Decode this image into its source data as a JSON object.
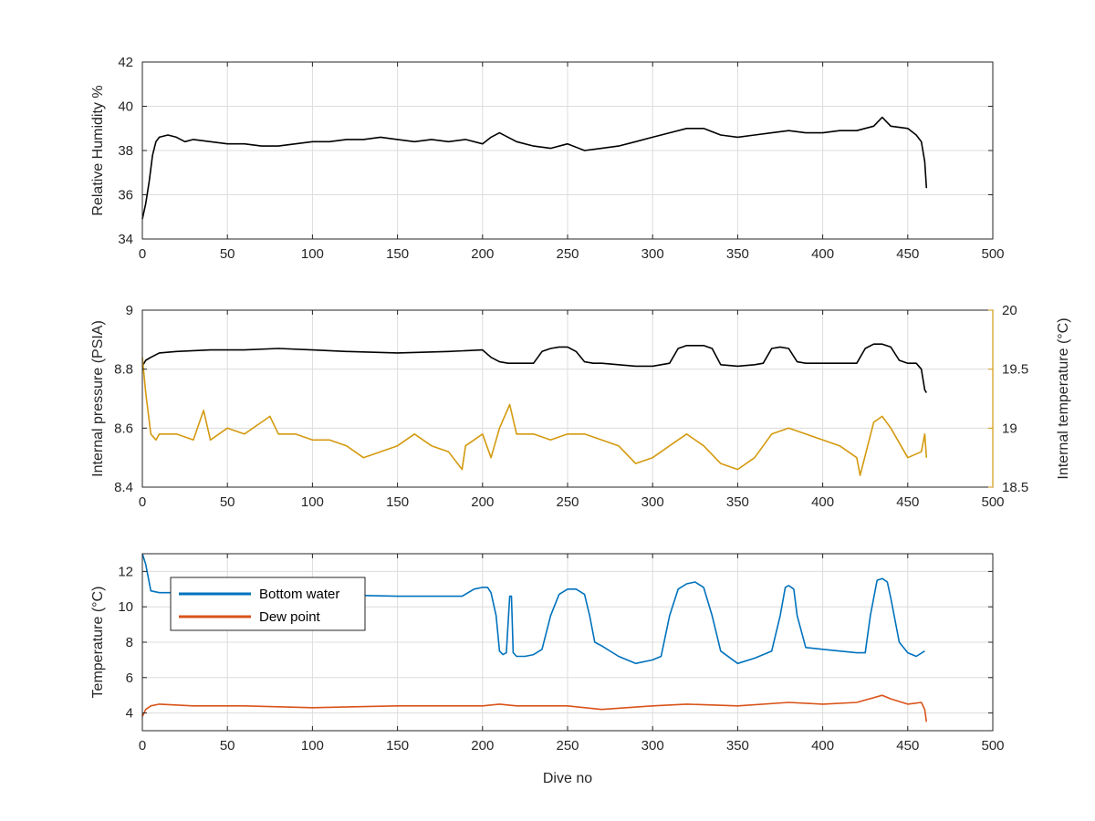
{
  "chart_data": [
    {
      "type": "line",
      "xlabel": "",
      "ylabel": "Relative Humidity %",
      "xlim": [
        0,
        500
      ],
      "ylim": [
        34,
        42
      ],
      "xticks": [
        0,
        50,
        100,
        150,
        200,
        250,
        300,
        350,
        400,
        450,
        500
      ],
      "yticks": [
        34,
        36,
        38,
        40,
        42
      ],
      "grid": true,
      "series": [
        {
          "color": "#000000",
          "x": [
            0,
            2,
            4,
            6,
            8,
            10,
            15,
            20,
            25,
            30,
            40,
            50,
            60,
            70,
            80,
            90,
            100,
            110,
            120,
            130,
            140,
            150,
            160,
            170,
            180,
            190,
            200,
            205,
            210,
            220,
            230,
            240,
            250,
            260,
            270,
            280,
            290,
            300,
            310,
            320,
            330,
            340,
            350,
            360,
            370,
            380,
            390,
            400,
            410,
            420,
            430,
            435,
            440,
            450,
            455,
            458,
            460,
            461
          ],
          "y": [
            34.9,
            35.6,
            36.6,
            37.8,
            38.4,
            38.6,
            38.7,
            38.6,
            38.4,
            38.5,
            38.4,
            38.3,
            38.3,
            38.2,
            38.2,
            38.3,
            38.4,
            38.4,
            38.5,
            38.5,
            38.6,
            38.5,
            38.4,
            38.5,
            38.4,
            38.5,
            38.3,
            38.6,
            38.8,
            38.4,
            38.2,
            38.1,
            38.3,
            38.0,
            38.1,
            38.2,
            38.4,
            38.6,
            38.8,
            39.0,
            39.0,
            38.7,
            38.6,
            38.7,
            38.8,
            38.9,
            38.8,
            38.8,
            38.9,
            38.9,
            39.1,
            39.5,
            39.1,
            39.0,
            38.7,
            38.4,
            37.5,
            36.3
          ]
        }
      ]
    },
    {
      "type": "line",
      "xlabel": "",
      "ylabel": "Internal pressure (PSIA)",
      "ylabel_right": "Internal temperature (°C)",
      "xlim": [
        0,
        500
      ],
      "ylim": [
        8.4,
        9
      ],
      "ylim_right": [
        18.5,
        20
      ],
      "xticks": [
        0,
        50,
        100,
        150,
        200,
        250,
        300,
        350,
        400,
        450,
        500
      ],
      "yticks": [
        8.4,
        8.6,
        8.8,
        9
      ],
      "yticks_right": [
        18.5,
        19,
        19.5,
        20
      ],
      "yticklabels_right": [
        "18.5",
        "19",
        "19.5",
        "20"
      ],
      "grid": true,
      "series": [
        {
          "axis": "left",
          "color": "#000000",
          "x": [
            0,
            2,
            5,
            10,
            20,
            40,
            60,
            80,
            100,
            120,
            150,
            180,
            200,
            205,
            210,
            215,
            220,
            230,
            235,
            240,
            245,
            250,
            255,
            260,
            265,
            270,
            280,
            290,
            300,
            310,
            315,
            320,
            325,
            330,
            335,
            340,
            350,
            360,
            365,
            370,
            375,
            380,
            385,
            390,
            400,
            410,
            420,
            425,
            430,
            435,
            440,
            445,
            450,
            455,
            458,
            460,
            461
          ],
          "y": [
            8.81,
            8.83,
            8.84,
            8.855,
            8.86,
            8.865,
            8.865,
            8.87,
            8.865,
            8.86,
            8.855,
            8.86,
            8.865,
            8.84,
            8.825,
            8.82,
            8.82,
            8.82,
            8.86,
            8.87,
            8.875,
            8.875,
            8.86,
            8.825,
            8.82,
            8.82,
            8.815,
            8.81,
            8.81,
            8.82,
            8.87,
            8.88,
            8.88,
            8.88,
            8.87,
            8.815,
            8.81,
            8.815,
            8.82,
            8.87,
            8.875,
            8.87,
            8.825,
            8.82,
            8.82,
            8.82,
            8.82,
            8.87,
            8.885,
            8.885,
            8.875,
            8.83,
            8.82,
            8.82,
            8.8,
            8.73,
            8.72
          ]
        },
        {
          "axis": "right",
          "color": "#D49A0F",
          "x": [
            0,
            2,
            5,
            8,
            10,
            20,
            30,
            36,
            40,
            50,
            60,
            70,
            75,
            80,
            90,
            100,
            110,
            120,
            130,
            140,
            150,
            160,
            170,
            180,
            188,
            190,
            200,
            205,
            210,
            216,
            220,
            230,
            240,
            250,
            260,
            270,
            280,
            290,
            300,
            310,
            320,
            330,
            340,
            350,
            360,
            370,
            380,
            390,
            400,
            410,
            420,
            422,
            430,
            435,
            440,
            450,
            458,
            460,
            461
          ],
          "y": [
            19.6,
            19.3,
            18.95,
            18.9,
            18.95,
            18.95,
            18.9,
            19.15,
            18.9,
            19.0,
            18.95,
            19.05,
            19.1,
            18.95,
            18.95,
            18.9,
            18.9,
            18.85,
            18.75,
            18.8,
            18.85,
            18.95,
            18.85,
            18.8,
            18.65,
            18.85,
            18.95,
            18.75,
            19.0,
            19.2,
            18.95,
            18.95,
            18.9,
            18.95,
            18.95,
            18.9,
            18.85,
            18.7,
            18.75,
            18.85,
            18.95,
            18.85,
            18.7,
            18.65,
            18.75,
            18.95,
            19.0,
            18.95,
            18.9,
            18.85,
            18.75,
            18.6,
            19.05,
            19.1,
            19.0,
            18.75,
            18.8,
            18.95,
            18.75
          ]
        }
      ]
    },
    {
      "type": "line",
      "xlabel": "Dive no",
      "ylabel": "Temperature (°C)",
      "xlim": [
        0,
        500
      ],
      "ylim": [
        3,
        13
      ],
      "xticks": [
        0,
        50,
        100,
        150,
        200,
        250,
        300,
        350,
        400,
        450,
        500
      ],
      "yticks": [
        4,
        6,
        8,
        10,
        12
      ],
      "grid": true,
      "legend": "top-left",
      "series": [
        {
          "name": "Bottom water",
          "color": "#0072BD",
          "x": [
            0,
            2,
            5,
            10,
            30,
            60,
            100,
            150,
            188,
            195,
            200,
            203,
            205,
            208,
            210,
            212,
            214,
            216,
            217,
            218,
            220,
            225,
            230,
            235,
            240,
            245,
            250,
            255,
            260,
            263,
            266,
            270,
            280,
            290,
            300,
            305,
            310,
            315,
            320,
            325,
            330,
            335,
            340,
            350,
            360,
            370,
            375,
            378,
            380,
            383,
            385,
            390,
            400,
            410,
            420,
            425,
            428,
            432,
            435,
            438,
            440,
            445,
            450,
            455,
            460
          ],
          "y": [
            13.0,
            12.4,
            10.9,
            10.8,
            10.8,
            10.8,
            10.7,
            10.6,
            10.6,
            11.0,
            11.1,
            11.1,
            10.8,
            9.5,
            7.5,
            7.3,
            7.4,
            10.6,
            10.6,
            7.4,
            7.2,
            7.2,
            7.3,
            7.6,
            9.5,
            10.7,
            11.0,
            11.0,
            10.7,
            9.5,
            8.0,
            7.8,
            7.2,
            6.8,
            7.0,
            7.2,
            9.5,
            11.0,
            11.3,
            11.4,
            11.1,
            9.5,
            7.5,
            6.8,
            7.1,
            7.5,
            9.5,
            11.1,
            11.2,
            11.0,
            9.5,
            7.7,
            7.6,
            7.5,
            7.4,
            7.4,
            9.5,
            11.5,
            11.6,
            11.4,
            10.5,
            8.0,
            7.4,
            7.2,
            7.5
          ]
        },
        {
          "name": "Dew point",
          "color": "#D95319",
          "x": [
            0,
            2,
            5,
            10,
            30,
            60,
            100,
            150,
            200,
            210,
            220,
            250,
            270,
            300,
            320,
            350,
            380,
            400,
            420,
            435,
            440,
            450,
            458,
            460,
            461
          ],
          "y": [
            3.8,
            4.2,
            4.4,
            4.5,
            4.4,
            4.4,
            4.3,
            4.4,
            4.4,
            4.5,
            4.4,
            4.4,
            4.2,
            4.4,
            4.5,
            4.4,
            4.6,
            4.5,
            4.6,
            5.0,
            4.8,
            4.5,
            4.6,
            4.2,
            3.5
          ]
        }
      ]
    }
  ]
}
